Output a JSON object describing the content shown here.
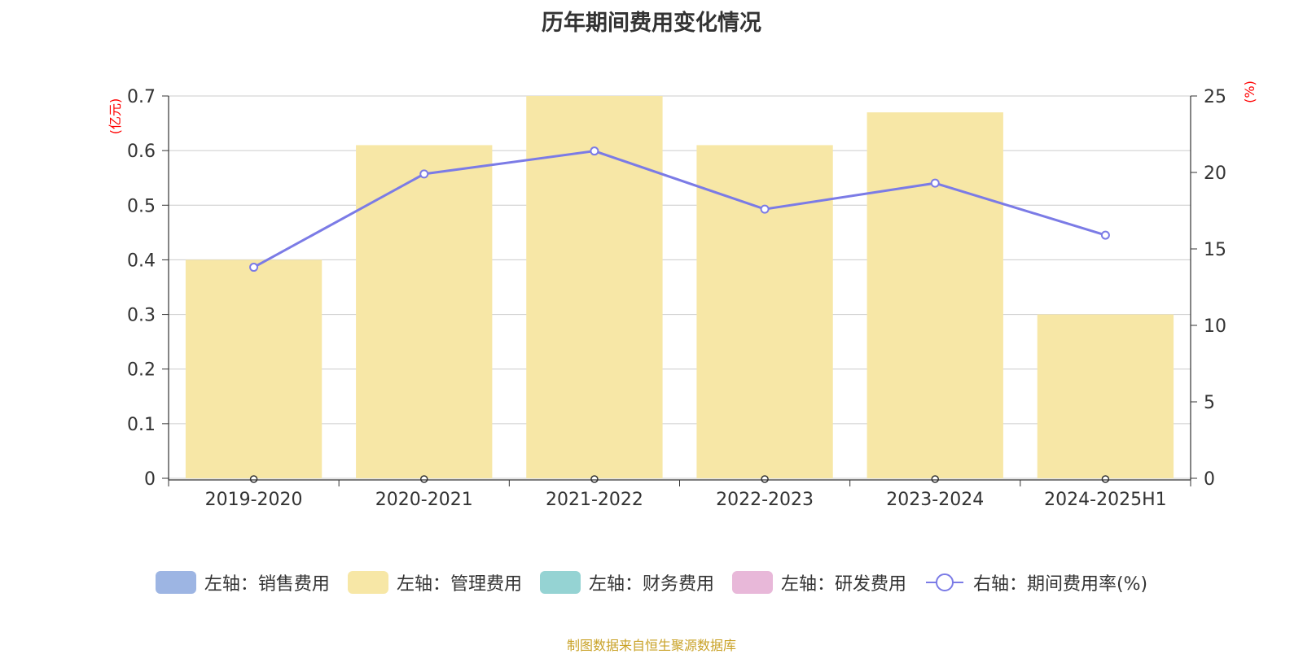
{
  "title": "历年期间费用变化情况",
  "source": "制图数据来自恒生聚源数据库",
  "colors": {
    "sales": "#9db5e3",
    "admin": "#f7e7a6",
    "finance": "#95d3d3",
    "rnd": "#e8b8d9",
    "rate": "#7b7be6",
    "axis_unit": "#ff0000",
    "grid": "#cccccc",
    "axis": "#333333",
    "text": "#333333"
  },
  "chart_data": {
    "type": "bar",
    "categories": [
      "2019-2020",
      "2020-2021",
      "2021-2022",
      "2022-2023",
      "2023-2024",
      "2024-2025H1"
    ],
    "series": [
      {
        "name": "左轴：销售费用",
        "values": [
          0,
          0,
          0,
          0,
          0,
          0
        ],
        "axis": "left",
        "type": "bar"
      },
      {
        "name": "左轴：管理费用",
        "values": [
          0.4,
          0.61,
          0.7,
          0.61,
          0.67,
          0.3
        ],
        "axis": "left",
        "type": "bar"
      },
      {
        "name": "左轴：财务费用",
        "values": [
          0,
          0,
          0,
          0,
          0,
          0
        ],
        "axis": "left",
        "type": "bar"
      },
      {
        "name": "左轴：研发费用",
        "values": [
          0,
          0,
          0,
          0,
          0,
          0
        ],
        "axis": "left",
        "type": "bar"
      },
      {
        "name": "右轴：期间费用率(%)",
        "values": [
          13.8,
          19.9,
          21.4,
          17.6,
          19.3,
          15.9
        ],
        "axis": "right",
        "type": "line"
      }
    ],
    "y_left": {
      "unit": "(亿元)",
      "ylim": [
        0,
        0.7
      ],
      "ticks": [
        "0",
        "0.1",
        "0.2",
        "0.3",
        "0.4",
        "0.5",
        "0.6",
        "0.7"
      ]
    },
    "y_right": {
      "unit": "(%)",
      "ylim": [
        0,
        25
      ],
      "ticks": [
        "0",
        "5",
        "10",
        "15",
        "20",
        "25"
      ]
    },
    "grid": true,
    "legend_position": "bottom"
  }
}
